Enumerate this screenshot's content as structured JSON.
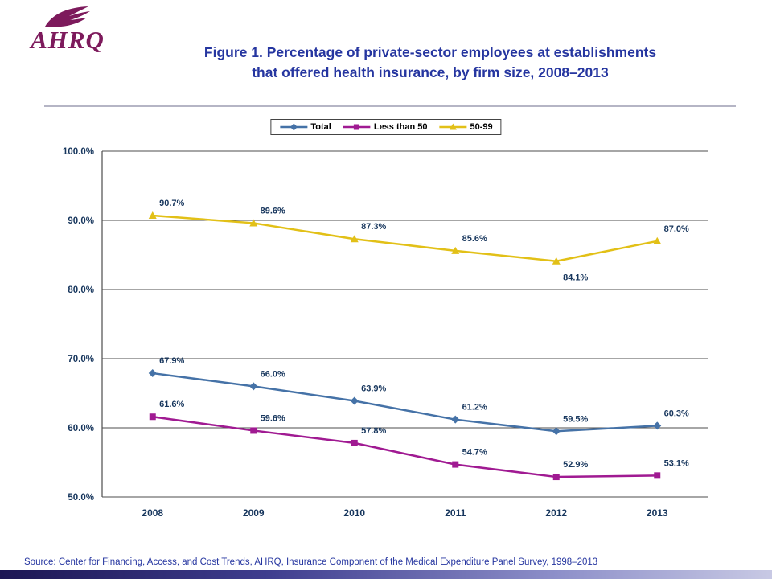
{
  "header": {
    "logo_text": "AHRQ",
    "logo_color": "#7D1A5C",
    "title_line1": "Figure 1. Percentage of private-sector employees at establishments",
    "title_line2": "that offered health insurance, by firm size, 2008–2013",
    "title_color": "#2636A0"
  },
  "footer": {
    "source": "Source: Center for Financing, Access, and Cost Trends, AHRQ, Insurance Component of the Medical Expenditure Panel Survey,  1998–2013",
    "source_color": "#2636A0"
  },
  "chart_data": {
    "type": "line",
    "title": "Figure 1. Percentage of private-sector employees at establishments that offered health insurance, by firm size, 2008–2013",
    "categories": [
      "2008",
      "2009",
      "2010",
      "2011",
      "2012",
      "2013"
    ],
    "series": [
      {
        "name": "Total",
        "color": "#4572A7",
        "marker": "diamond",
        "values": [
          67.9,
          66.0,
          63.9,
          61.2,
          59.5,
          60.3
        ],
        "label_positions": [
          "above",
          "above",
          "above",
          "above",
          "above",
          "above"
        ]
      },
      {
        "name": "Less than 50",
        "color": "#A01A92",
        "marker": "square",
        "values": [
          61.6,
          59.6,
          57.8,
          54.7,
          52.9,
          53.1
        ],
        "label_positions": [
          "above",
          "above",
          "above",
          "above",
          "above",
          "above"
        ]
      },
      {
        "name": "50-99",
        "color": "#E2C017",
        "marker": "triangle",
        "values": [
          90.7,
          89.6,
          87.3,
          85.6,
          84.1,
          87.0
        ],
        "label_positions": [
          "above",
          "above",
          "above",
          "above",
          "below",
          "above"
        ]
      }
    ],
    "ylim": [
      50,
      100
    ],
    "ytick_step": 10,
    "ytick_format": "percent1",
    "grid": true,
    "legend_position": "top-center",
    "axis_label_color": "#17365D",
    "data_label_color": "#17365D",
    "gridline_color": "#4d4d4d"
  }
}
